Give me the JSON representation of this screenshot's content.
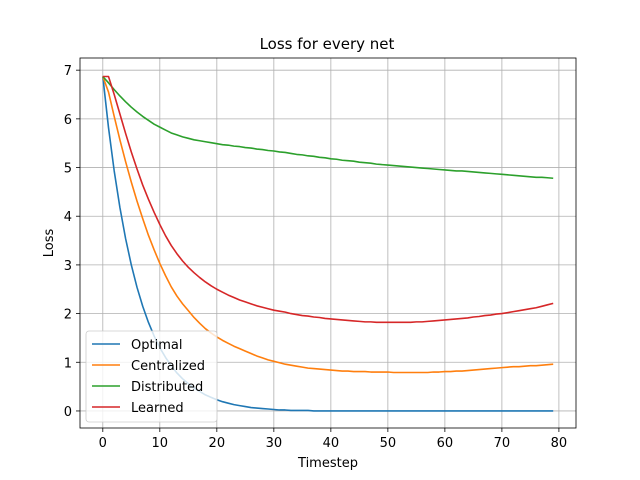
{
  "chart_data": {
    "type": "line",
    "title": "Loss for every net",
    "xlabel": "Timestep",
    "ylabel": "Loss",
    "xlim": [
      -4,
      83
    ],
    "ylim": [
      -0.35,
      7.25
    ],
    "xticks": [
      0,
      10,
      20,
      30,
      40,
      50,
      60,
      70,
      80
    ],
    "yticks": [
      0,
      1,
      2,
      3,
      4,
      5,
      6,
      7
    ],
    "grid": true,
    "legend": "lower-left",
    "x": [
      0,
      1,
      2,
      3,
      4,
      5,
      6,
      7,
      8,
      9,
      10,
      11,
      12,
      13,
      14,
      15,
      16,
      17,
      18,
      19,
      20,
      21,
      22,
      23,
      24,
      25,
      26,
      27,
      28,
      29,
      30,
      31,
      32,
      33,
      34,
      35,
      36,
      37,
      38,
      39,
      40,
      41,
      42,
      43,
      44,
      45,
      46,
      47,
      48,
      49,
      50,
      51,
      52,
      53,
      54,
      55,
      56,
      57,
      58,
      59,
      60,
      61,
      62,
      63,
      64,
      65,
      66,
      67,
      68,
      69,
      70,
      71,
      72,
      73,
      74,
      75,
      76,
      77,
      78,
      79
    ],
    "series": [
      {
        "name": "Optimal",
        "color": "#1f77b4",
        "values": [
          6.87,
          5.82,
          4.93,
          4.18,
          3.54,
          3.0,
          2.54,
          2.15,
          1.82,
          1.54,
          1.3,
          1.1,
          0.93,
          0.78,
          0.66,
          0.56,
          0.47,
          0.4,
          0.33,
          0.28,
          0.23,
          0.19,
          0.16,
          0.13,
          0.11,
          0.09,
          0.07,
          0.06,
          0.05,
          0.04,
          0.03,
          0.02,
          0.02,
          0.01,
          0.01,
          0.01,
          0.01,
          0,
          0,
          0,
          0,
          0,
          0,
          0,
          0,
          0,
          0,
          0,
          0,
          0,
          0,
          0,
          0,
          0,
          0,
          0,
          0,
          0,
          0,
          0,
          0,
          0,
          0,
          0,
          0,
          0,
          0,
          0,
          0,
          0,
          0,
          0,
          0,
          0,
          0,
          0,
          0,
          0,
          0,
          0
        ]
      },
      {
        "name": "Centralized",
        "color": "#ff7f0e",
        "values": [
          6.87,
          6.55,
          6.05,
          5.57,
          5.12,
          4.7,
          4.31,
          3.95,
          3.61,
          3.31,
          3.03,
          2.78,
          2.55,
          2.36,
          2.2,
          2.06,
          1.92,
          1.8,
          1.69,
          1.6,
          1.52,
          1.45,
          1.39,
          1.33,
          1.28,
          1.23,
          1.18,
          1.13,
          1.09,
          1.05,
          1.02,
          0.99,
          0.96,
          0.94,
          0.92,
          0.9,
          0.88,
          0.87,
          0.86,
          0.85,
          0.84,
          0.83,
          0.82,
          0.82,
          0.81,
          0.81,
          0.81,
          0.8,
          0.8,
          0.8,
          0.8,
          0.79,
          0.79,
          0.79,
          0.79,
          0.79,
          0.79,
          0.79,
          0.8,
          0.8,
          0.81,
          0.81,
          0.82,
          0.82,
          0.83,
          0.84,
          0.85,
          0.86,
          0.87,
          0.88,
          0.89,
          0.9,
          0.91,
          0.91,
          0.92,
          0.93,
          0.93,
          0.94,
          0.95,
          0.96
        ]
      },
      {
        "name": "Distributed",
        "color": "#2ca02c",
        "values": [
          6.87,
          6.74,
          6.6,
          6.47,
          6.35,
          6.24,
          6.14,
          6.05,
          5.97,
          5.89,
          5.83,
          5.77,
          5.71,
          5.67,
          5.63,
          5.6,
          5.57,
          5.55,
          5.53,
          5.51,
          5.49,
          5.47,
          5.46,
          5.44,
          5.43,
          5.41,
          5.4,
          5.38,
          5.37,
          5.35,
          5.34,
          5.32,
          5.31,
          5.29,
          5.27,
          5.26,
          5.24,
          5.23,
          5.21,
          5.2,
          5.18,
          5.17,
          5.15,
          5.14,
          5.13,
          5.11,
          5.1,
          5.09,
          5.07,
          5.06,
          5.05,
          5.04,
          5.03,
          5.02,
          5.01,
          5.0,
          4.99,
          4.98,
          4.97,
          4.96,
          4.95,
          4.94,
          4.93,
          4.93,
          4.92,
          4.91,
          4.9,
          4.89,
          4.88,
          4.87,
          4.86,
          4.85,
          4.84,
          4.83,
          4.82,
          4.81,
          4.8,
          4.8,
          4.79,
          4.78
        ]
      },
      {
        "name": "Learned",
        "color": "#d62728",
        "values": [
          6.87,
          6.87,
          6.5,
          6.1,
          5.7,
          5.32,
          4.97,
          4.64,
          4.35,
          4.08,
          3.83,
          3.6,
          3.4,
          3.23,
          3.08,
          2.95,
          2.84,
          2.74,
          2.65,
          2.57,
          2.5,
          2.44,
          2.38,
          2.33,
          2.28,
          2.24,
          2.2,
          2.16,
          2.13,
          2.1,
          2.07,
          2.05,
          2.03,
          2.0,
          1.98,
          1.96,
          1.95,
          1.93,
          1.92,
          1.9,
          1.89,
          1.88,
          1.87,
          1.86,
          1.85,
          1.84,
          1.83,
          1.83,
          1.82,
          1.82,
          1.82,
          1.82,
          1.82,
          1.82,
          1.82,
          1.83,
          1.83,
          1.84,
          1.85,
          1.86,
          1.87,
          1.88,
          1.89,
          1.9,
          1.91,
          1.93,
          1.94,
          1.96,
          1.97,
          1.99,
          2.0,
          2.02,
          2.04,
          2.06,
          2.08,
          2.1,
          2.12,
          2.15,
          2.18,
          2.21
        ]
      }
    ]
  }
}
